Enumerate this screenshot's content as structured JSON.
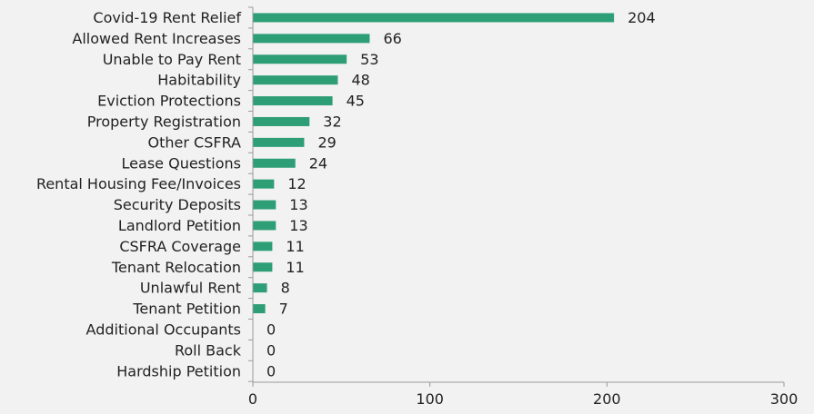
{
  "chart_data": {
    "type": "bar",
    "orientation": "horizontal",
    "categories": [
      "Covid-19 Rent Relief",
      "Allowed Rent Increases",
      "Unable to Pay Rent",
      "Habitability",
      "Eviction Protections",
      "Property Registration",
      "Other CSFRA",
      "Lease Questions",
      "Rental Housing Fee/Invoices",
      "Security Deposits",
      "Landlord Petition",
      "CSFRA Coverage",
      "Tenant Relocation",
      "Unlawful Rent",
      "Tenant Petition",
      "Additional Occupants",
      "Roll Back",
      "Hardship Petition"
    ],
    "values": [
      204,
      66,
      53,
      48,
      45,
      32,
      29,
      24,
      12,
      13,
      13,
      11,
      11,
      8,
      7,
      0,
      0,
      0
    ],
    "xlim": [
      0,
      300
    ],
    "xticks": [
      0,
      100,
      200,
      300
    ],
    "title": "",
    "xlabel": "",
    "ylabel": "",
    "grid": false,
    "bar_color": "#2e9e77",
    "background_color": "#f2f2f2",
    "axis_color": "#999999"
  }
}
